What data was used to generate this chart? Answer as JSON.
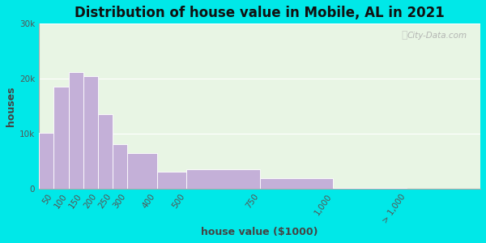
{
  "title": "Distribution of house value in Mobile, AL in 2021",
  "xlabel": "house value ($1000)",
  "ylabel": "houses",
  "bar_labels": [
    "50",
    "100",
    "150",
    "200",
    "250",
    "300",
    "400",
    "500",
    "750",
    "1,000",
    "> 1,000"
  ],
  "bar_values": [
    10200,
    18500,
    21200,
    20500,
    13500,
    8000,
    6500,
    3000,
    3500,
    1800,
    150
  ],
  "bar_left_edges": [
    0,
    50,
    100,
    150,
    200,
    250,
    300,
    400,
    500,
    750,
    1000
  ],
  "bar_widths": [
    50,
    50,
    50,
    50,
    50,
    50,
    100,
    100,
    250,
    250,
    250
  ],
  "bar_color": "#c4b0d8",
  "bar_edge_color": "#ffffff",
  "background_outer": "#00e8e8",
  "background_inner": "#e8f5e4",
  "title_fontsize": 12,
  "label_fontsize": 9,
  "tick_fontsize": 7.5,
  "ylim": [
    0,
    30000
  ],
  "yticks": [
    0,
    10000,
    20000,
    30000
  ],
  "ytick_labels": [
    "0",
    "10k",
    "20k",
    "30k"
  ],
  "tick_positions": [
    50,
    100,
    150,
    200,
    250,
    300,
    400,
    500,
    750,
    1000,
    1250
  ],
  "watermark_text": "City-Data.com"
}
